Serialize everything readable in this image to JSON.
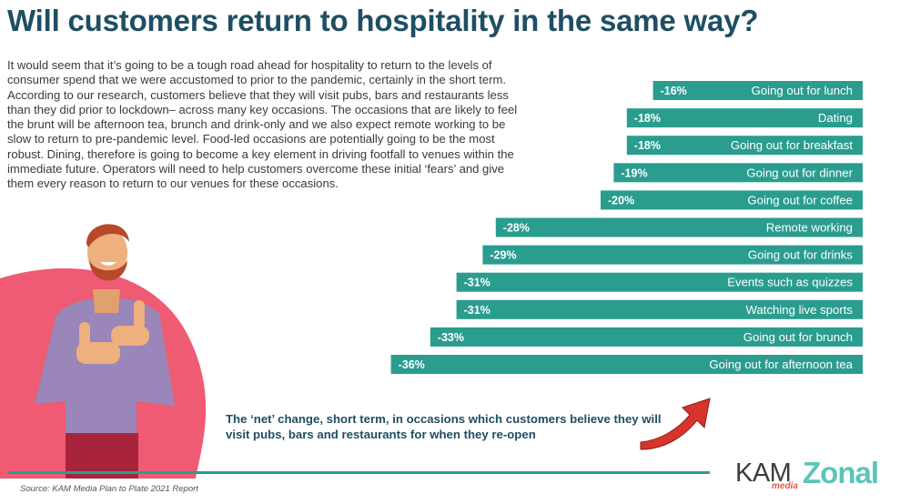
{
  "page": {
    "title": "Will customers return to hospitality in the same way?",
    "body": "It would seem that it’s going to be a tough road ahead for hospitality to return to the levels of consumer spend that we were accustomed to prior to the pandemic, certainly in the short term. According to our research, customers believe that they will visit pubs, bars and restaurants less than they did prior to lockdown– across many key occasions. The occasions that are likely to feel the brunt will be afternoon tea, brunch and drink-only and we also expect remote working to be slow to return to pre-pandemic level. Food-led occasions are potentially going to be the most robust. Dining, therefore is going to become a key element in driving footfall to venues within the immediate future. Operators will need to help customers overcome these initial ‘fears’ and give them every reason to return to our venues for these occasions.",
    "caption": "The ‘net’ change, short term, in occasions which customers believe they will visit pubs, bars and restaurants for when they re-open",
    "source": "Source: KAM Media Plan to Plate 2021 Report",
    "logos": {
      "kam": "KAM",
      "kam_sub": "media",
      "zonal": "Zonal"
    }
  },
  "colors": {
    "bar": "#2a9d8f",
    "title": "#1f4e63",
    "arrow": "#d9342b",
    "pink": "#ef5b72",
    "shirt": "#9a86b8",
    "pants": "#a8243b"
  },
  "chart_data": {
    "type": "bar",
    "orientation": "horizontal",
    "categories": [
      "Going out for lunch",
      "Dating",
      "Going out for breakfast",
      "Going out for dinner",
      "Going out for coffee",
      "Remote working",
      "Going out for drinks",
      "Events such as quizzes",
      "Watching live sports",
      "Going out for brunch",
      "Going out for afternoon tea"
    ],
    "values": [
      -16,
      -18,
      -18,
      -19,
      -20,
      -28,
      -29,
      -31,
      -31,
      -33,
      -36
    ],
    "value_labels": [
      "-16%",
      "-18%",
      "-18%",
      "-19%",
      "-20%",
      "-28%",
      "-29%",
      "-31%",
      "-31%",
      "-33%",
      "-36%"
    ],
    "unit": "%",
    "xlim": [
      -36,
      0
    ],
    "grid": false,
    "legend": "none"
  }
}
